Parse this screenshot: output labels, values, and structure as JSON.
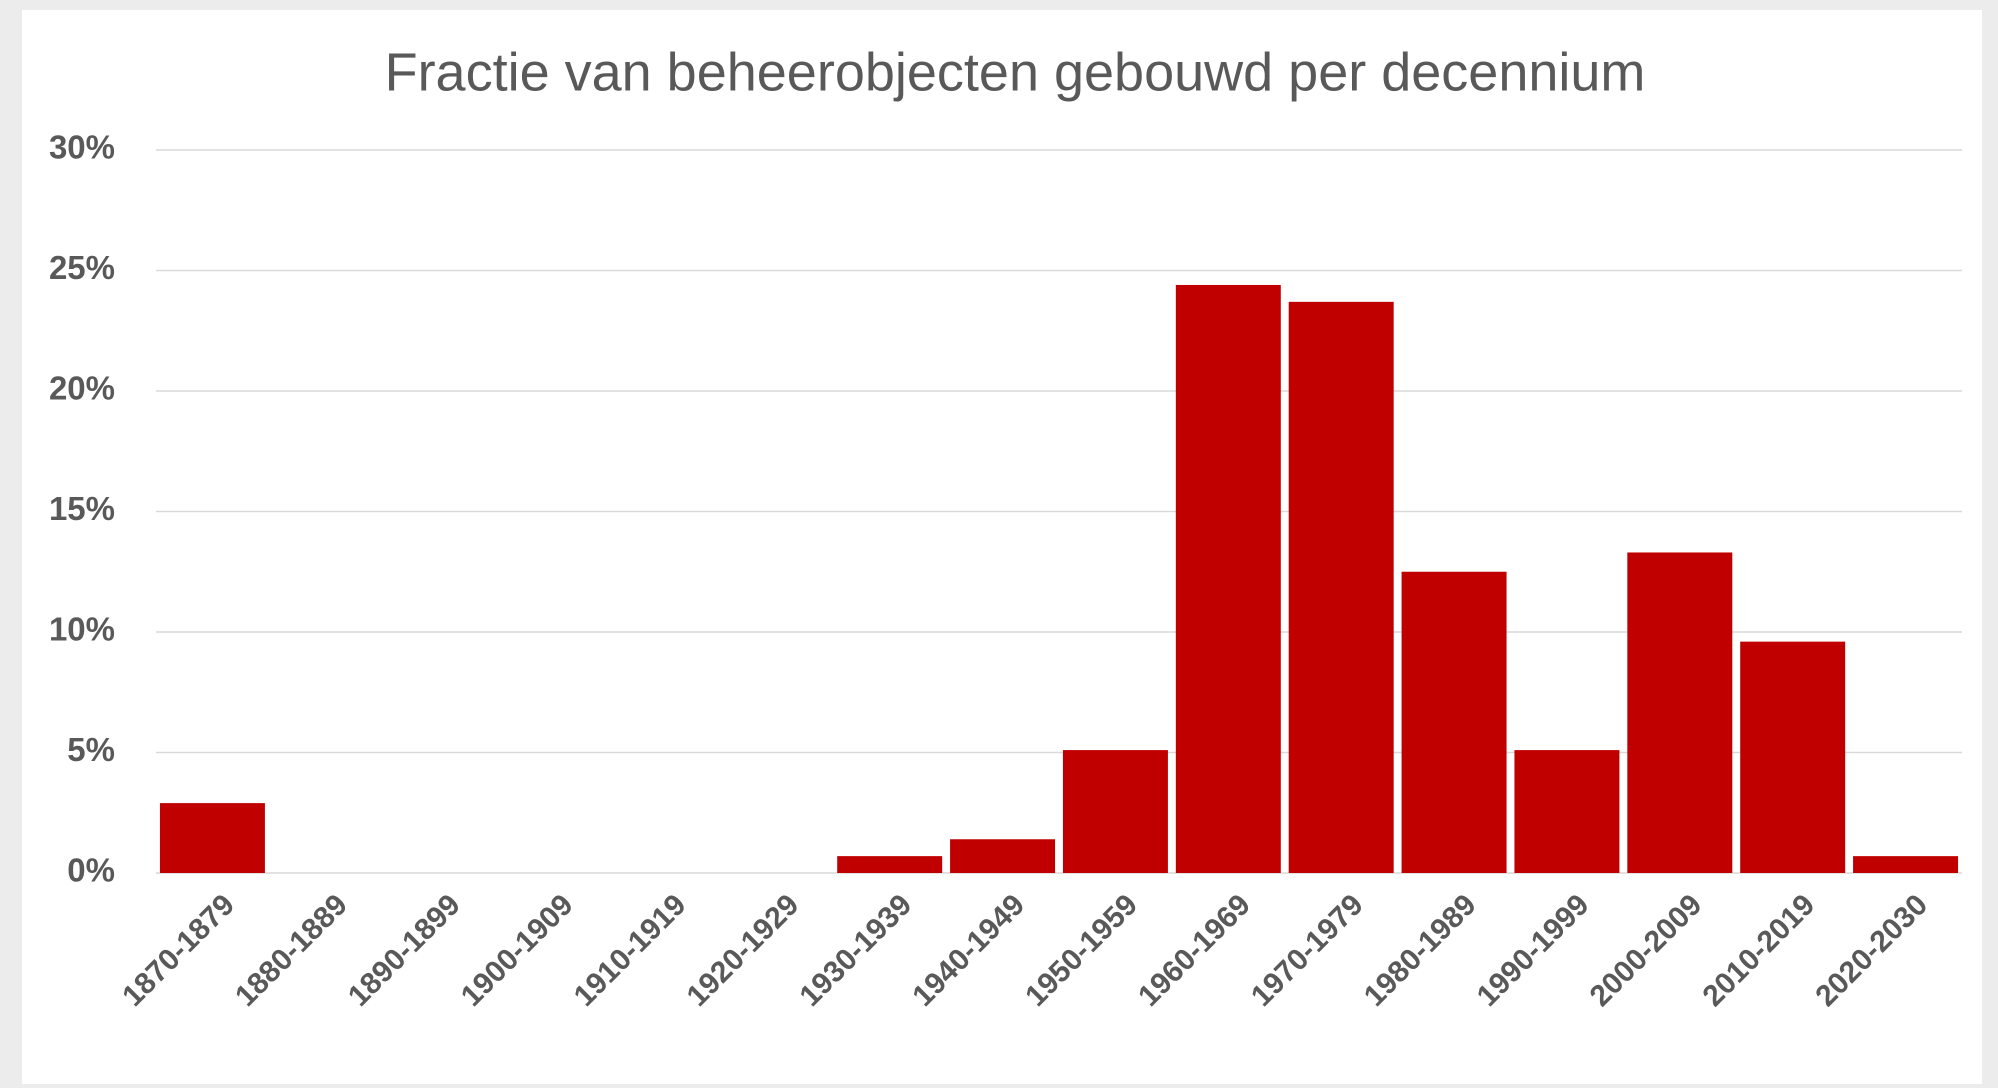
{
  "chart_data": {
    "type": "bar",
    "title": "Fractie van beheerobjecten gebouwd per decennium",
    "categories": [
      "1870-1879",
      "1880-1889",
      "1890-1899",
      "1900-1909",
      "1910-1919",
      "1920-1929",
      "1930-1939",
      "1940-1949",
      "1950-1959",
      "1960-1969",
      "1970-1979",
      "1980-1989",
      "1990-1999",
      "2000-2009",
      "2010-2019",
      "2020-2030"
    ],
    "values": [
      2.9,
      0,
      0,
      0,
      0,
      0,
      0.7,
      1.4,
      5.1,
      24.4,
      23.7,
      12.5,
      5.1,
      13.3,
      9.6,
      0.7
    ],
    "color": "#c00000",
    "ylim": [
      0,
      30
    ],
    "yticks": [
      {
        "value": 0,
        "label": "0%"
      },
      {
        "value": 5,
        "label": "5%"
      },
      {
        "value": 10,
        "label": "10%"
      },
      {
        "value": 15,
        "label": "15%"
      },
      {
        "value": 20,
        "label": "20%"
      },
      {
        "value": 25,
        "label": "25%"
      },
      {
        "value": 30,
        "label": "30%"
      }
    ],
    "grid": true
  }
}
